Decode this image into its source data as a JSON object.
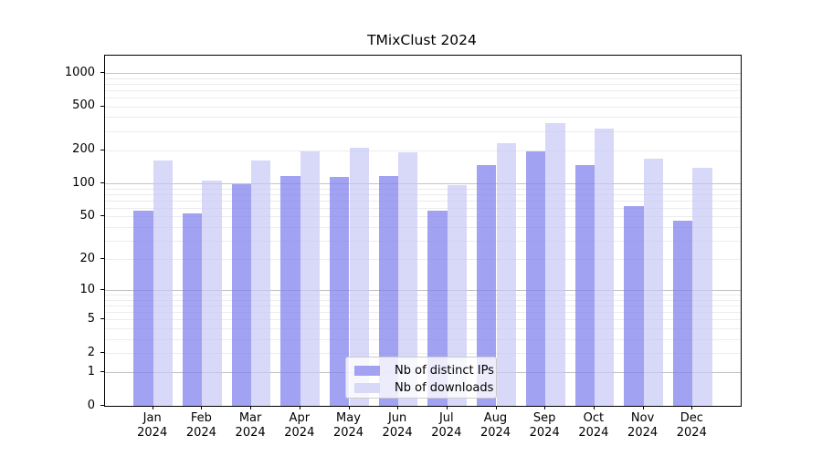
{
  "chart_title": "TMixClust 2024",
  "legend": {
    "items": [
      {
        "label": "Nb of distinct IPs",
        "color": "#a2a2f0"
      },
      {
        "label": "Nb of downloads",
        "color": "#d8d8f7"
      }
    ]
  },
  "chart_data": {
    "type": "bar",
    "title": "TMixClust 2024",
    "categories": [
      "Jan 2024",
      "Feb 2024",
      "Mar 2024",
      "Apr 2024",
      "May 2024",
      "Jun 2024",
      "Jul 2024",
      "Aug 2024",
      "Sep 2024",
      "Oct 2024",
      "Nov 2024",
      "Dec 2024"
    ],
    "series": [
      {
        "name": "Nb of distinct IPs",
        "solid_color": "#a2a2f0",
        "fill_color": "rgba(131,131,237,0.75)",
        "values": [
          56,
          53,
          99,
          116,
          114,
          117,
          57,
          146,
          197,
          148,
          62,
          46
        ]
      },
      {
        "name": "Nb of downloads",
        "solid_color": "#d8d8f7",
        "fill_color": "rgba(200,200,246,0.7)",
        "values": [
          161,
          107,
          163,
          196,
          211,
          192,
          97,
          233,
          352,
          313,
          167,
          139
        ]
      }
    ],
    "yscale": "log1p",
    "yticks": [
      0,
      1,
      2,
      5,
      10,
      20,
      50,
      100,
      200,
      500,
      1000
    ],
    "ylim": [
      0,
      1430
    ],
    "grid": "horizontal major (powers of 10) + minor log lines",
    "legend_position": "lower center inside plot"
  }
}
